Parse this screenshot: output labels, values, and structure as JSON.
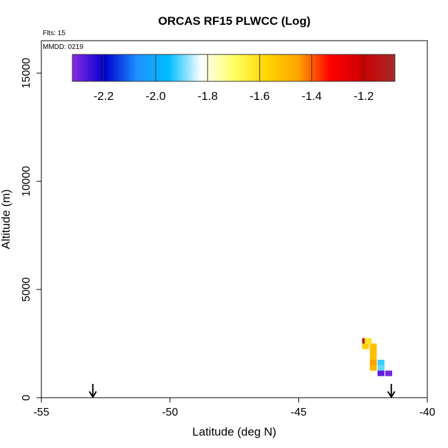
{
  "chart_data": {
    "type": "heatmap",
    "title": "ORCAS RF15 PLWCC (Log)",
    "annotations": {
      "flights": "Flts: 15",
      "date": "MMDD: 0219"
    },
    "xlabel": "Latitude (deg N)",
    "ylabel": "Altitude (m)",
    "xlim": [
      -55,
      -40
    ],
    "ylim": [
      0,
      16500
    ],
    "x_ticks": [
      -55,
      -50,
      -45,
      -40
    ],
    "x_tick_labels": [
      "-55",
      "-50",
      "-45",
      "-40"
    ],
    "y_ticks": [
      0,
      5000,
      10000,
      15000
    ],
    "y_tick_labels": [
      "0",
      "5000",
      "10000",
      "15000"
    ],
    "grid": false,
    "colorbar": {
      "placement": "top",
      "range": [
        -2.32,
        -1.08
      ],
      "ticks": [
        -2.2,
        -2.0,
        -1.8,
        -1.6,
        -1.4,
        -1.2
      ],
      "tick_labels": [
        "-2.2",
        "-2.0",
        "-1.8",
        "-1.6",
        "-1.4",
        "-1.2"
      ],
      "colors": [
        "#8a2be2",
        "#0000cd",
        "#1e90ff",
        "#00bfff",
        "#ffffff",
        "#ffff66",
        "#ffd700",
        "#ffa500",
        "#ff0000",
        "#cc0000",
        "#a52a2a"
      ]
    },
    "arrows_latitude": [
      -53.0,
      -41.4
    ],
    "cells": [
      {
        "lat": -42.4,
        "alt": 2625,
        "value": -1.12
      },
      {
        "lat": -42.3,
        "alt": 2625,
        "value": -1.62
      },
      {
        "lat": -42.4,
        "alt": 2375,
        "value": -1.55
      },
      {
        "lat": -42.1,
        "alt": 2375,
        "value": -1.52
      },
      {
        "lat": -42.1,
        "alt": 2125,
        "value": -1.52
      },
      {
        "lat": -42.1,
        "alt": 1875,
        "value": -1.52
      },
      {
        "lat": -42.1,
        "alt": 1625,
        "value": -1.45
      },
      {
        "lat": -41.8,
        "alt": 1625,
        "value": -1.92
      },
      {
        "lat": -42.1,
        "alt": 1375,
        "value": -1.5
      },
      {
        "lat": -41.8,
        "alt": 1375,
        "value": -1.9
      },
      {
        "lat": -41.8,
        "alt": 1125,
        "value": -2.28
      },
      {
        "lat": -41.5,
        "alt": 1125,
        "value": -2.3
      }
    ]
  }
}
